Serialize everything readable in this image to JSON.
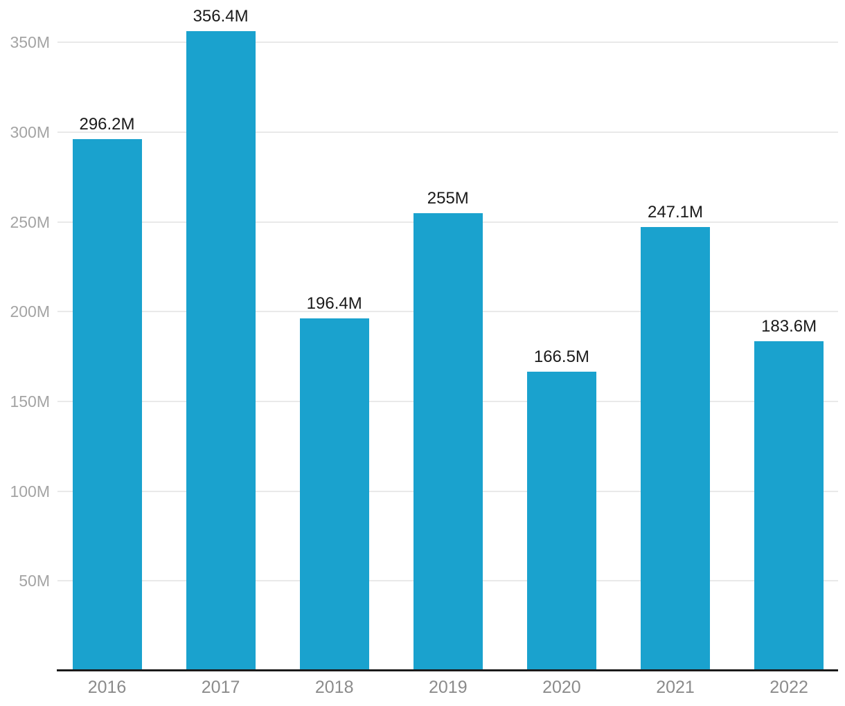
{
  "chart_data": {
    "type": "bar",
    "title": "",
    "xlabel": "",
    "ylabel": "",
    "categories": [
      "2016",
      "2017",
      "2018",
      "2019",
      "2020",
      "2021",
      "2022"
    ],
    "values": [
      296.2,
      356.4,
      196.4,
      255,
      166.5,
      247.1,
      183.6
    ],
    "value_labels": [
      "296.2M",
      "356.4M",
      "196.4M",
      "255M",
      "166.5M",
      "247.1M",
      "183.6M"
    ],
    "unit": "M",
    "yticks": [
      {
        "value": 50,
        "label": "50M"
      },
      {
        "value": 100,
        "label": "100M"
      },
      {
        "value": 150,
        "label": "150M"
      },
      {
        "value": 200,
        "label": "200M"
      },
      {
        "value": 250,
        "label": "250M"
      },
      {
        "value": 300,
        "label": "300M"
      },
      {
        "value": 350,
        "label": "350M"
      }
    ],
    "ylim": [
      0,
      375
    ],
    "grid": true,
    "legend": false,
    "colors": {
      "bar": "#1aa2ce",
      "gridline": "#e9e9e9",
      "axis_line": "#1a1a1a",
      "ytick_text": "#a4a4a4",
      "xtick_text": "#8b8b8b",
      "value_label_text": "#1a1a1a",
      "background": "#ffffff"
    }
  }
}
